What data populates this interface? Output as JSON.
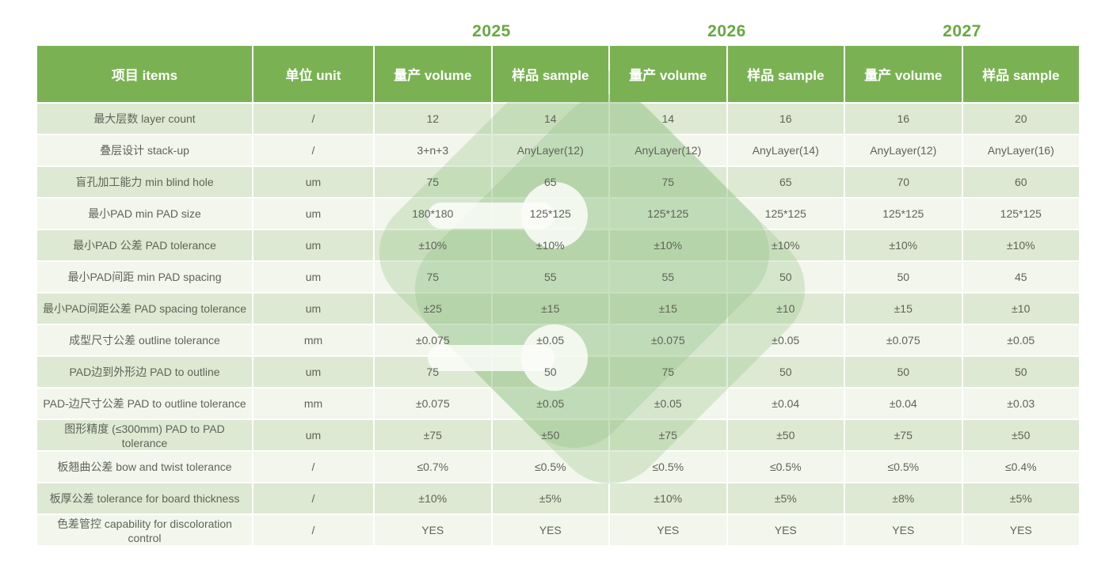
{
  "years": [
    "2025",
    "2026",
    "2027"
  ],
  "columns": [
    "项目 items",
    "单位 unit",
    "量产 volume",
    "样品 sample",
    "量产 volume",
    "样品 sample",
    "量产 volume",
    "样品 sample"
  ],
  "rows": [
    {
      "item": "最大层数 layer count",
      "unit": "/",
      "values": [
        "12",
        "14",
        "14",
        "16",
        "16",
        "20"
      ]
    },
    {
      "item": "叠层设计 stack-up",
      "unit": "/",
      "values": [
        "3+n+3",
        "AnyLayer(12)",
        "AnyLayer(12)",
        "AnyLayer(14)",
        "AnyLayer(12)",
        "AnyLayer(16)"
      ]
    },
    {
      "item": "盲孔加工能力 min blind hole",
      "unit": "um",
      "values": [
        "75",
        "65",
        "75",
        "65",
        "70",
        "60"
      ]
    },
    {
      "item": "最小PAD min PAD size",
      "unit": "um",
      "values": [
        "180*180",
        "125*125",
        "125*125",
        "125*125",
        "125*125",
        "125*125"
      ]
    },
    {
      "item": "最小PAD 公差 PAD tolerance",
      "unit": "um",
      "values": [
        "±10%",
        "±10%",
        "±10%",
        "±10%",
        "±10%",
        "±10%"
      ]
    },
    {
      "item": "最小PAD间距 min PAD spacing",
      "unit": "um",
      "values": [
        "75",
        "55",
        "55",
        "50",
        "50",
        "45"
      ]
    },
    {
      "item": "最小PAD间距公差 PAD spacing tolerance",
      "unit": "um",
      "values": [
        "±25",
        "±15",
        "±15",
        "±10",
        "±15",
        "±10"
      ]
    },
    {
      "item": "成型尺寸公差 outline tolerance",
      "unit": "mm",
      "values": [
        "±0.075",
        "±0.05",
        "±0.075",
        "±0.05",
        "±0.075",
        "±0.05"
      ]
    },
    {
      "item": "PAD边到外形边 PAD to outline",
      "unit": "um",
      "values": [
        "75",
        "50",
        "75",
        "50",
        "50",
        "50"
      ]
    },
    {
      "item": "PAD-边尺寸公差 PAD to outline tolerance",
      "unit": "mm",
      "values": [
        "±0.075",
        "±0.05",
        "±0.05",
        "±0.04",
        "±0.04",
        "±0.03"
      ]
    },
    {
      "item": "图形精度 (≤300mm) PAD to PAD tolerance",
      "unit": "um",
      "values": [
        "±75",
        "±50",
        "±75",
        "±50",
        "±75",
        "±50"
      ]
    },
    {
      "item": "板翘曲公差 bow and twist tolerance",
      "unit": "/",
      "values": [
        "≤0.7%",
        "≤0.5%",
        "≤0.5%",
        "≤0.5%",
        "≤0.5%",
        "≤0.4%"
      ]
    },
    {
      "item": "板厚公差 tolerance for board thickness",
      "unit": "/",
      "values": [
        "±10%",
        "±5%",
        "±10%",
        "±5%",
        "±8%",
        "±5%"
      ]
    },
    {
      "item": "色差管控 capability for discoloration control",
      "unit": "/",
      "values": [
        "YES",
        "YES",
        "YES",
        "YES",
        "YES",
        "YES"
      ]
    }
  ],
  "colors": {
    "header_green": "#7AB253",
    "year_green": "#68A844",
    "row_green": "#dde9d2",
    "row_light": "#f2f6ec",
    "cell_text": "#5f6459"
  }
}
